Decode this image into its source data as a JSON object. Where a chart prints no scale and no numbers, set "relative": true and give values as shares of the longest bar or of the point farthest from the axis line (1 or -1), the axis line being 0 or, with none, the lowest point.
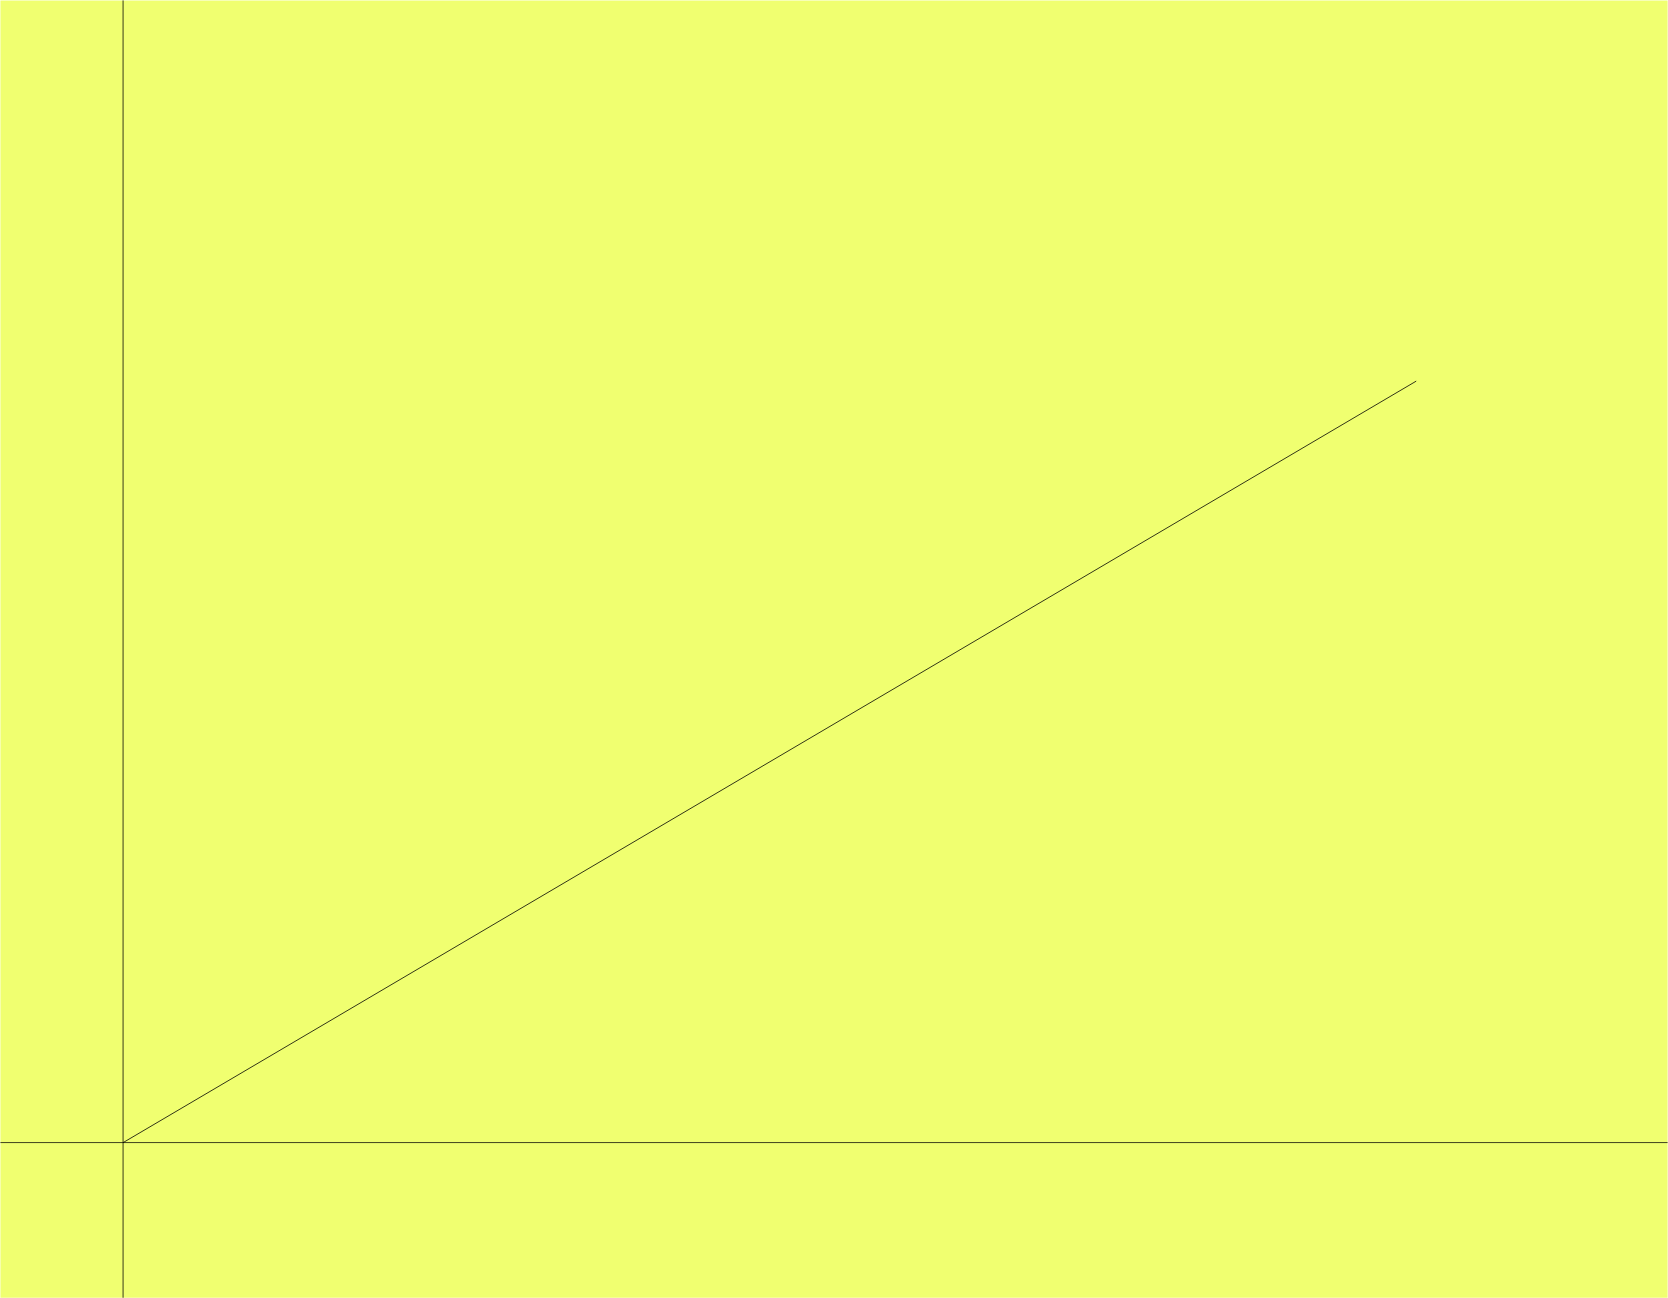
{
  "chart_data": {
    "type": "line",
    "relative": true,
    "categories": [
      null,
      null
    ],
    "values": [
      0,
      1
    ],
    "color": "#000000"
  }
}
